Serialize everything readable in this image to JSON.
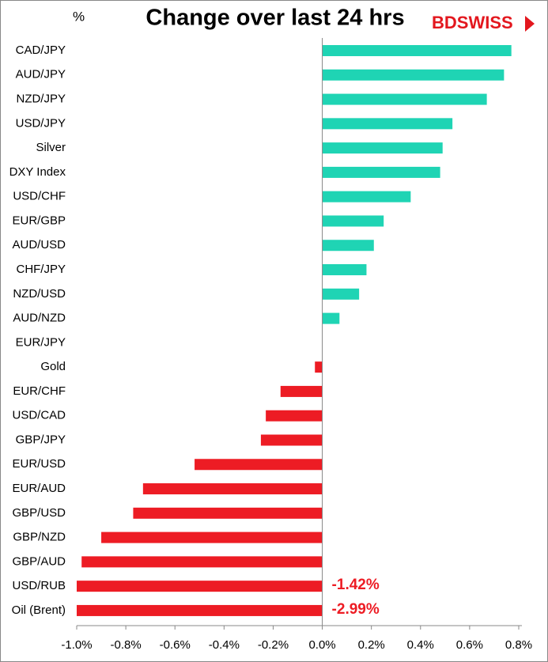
{
  "chart_data": {
    "type": "bar",
    "orientation": "horizontal",
    "title": "Change over last 24 hrs",
    "unit_label": "%",
    "logo": "BDSWISS",
    "categories": [
      "CAD/JPY",
      "AUD/JPY",
      "NZD/JPY",
      "USD/JPY",
      "Silver",
      "DXY Index",
      "USD/CHF",
      "EUR/GBP",
      "AUD/USD",
      "CHF/JPY",
      "NZD/USD",
      "AUD/NZD",
      "EUR/JPY",
      "Gold",
      "EUR/CHF",
      "USD/CAD",
      "GBP/JPY",
      "EUR/USD",
      "EUR/AUD",
      "GBP/USD",
      "GBP/NZD",
      "GBP/AUD",
      "USD/RUB",
      "Oil (Brent)"
    ],
    "values": [
      0.77,
      0.74,
      0.67,
      0.53,
      0.49,
      0.48,
      0.36,
      0.25,
      0.21,
      0.18,
      0.15,
      0.07,
      0,
      -0.03,
      -0.17,
      -0.23,
      -0.25,
      -0.52,
      -0.73,
      -0.77,
      -0.9,
      -0.98,
      -1.42,
      -2.99
    ],
    "value_labels": [
      null,
      null,
      null,
      null,
      null,
      null,
      null,
      null,
      null,
      null,
      null,
      null,
      null,
      null,
      null,
      null,
      null,
      null,
      null,
      null,
      null,
      null,
      "-1.42%",
      "-2.99%"
    ],
    "positive_color": "#1fd4b4",
    "negative_color": "#ed1c24",
    "xlim": [
      -1.0,
      0.8
    ],
    "xticks": [
      {
        "value": -1.0,
        "label": "-1.0%"
      },
      {
        "value": -0.8,
        "label": "-0.8%"
      },
      {
        "value": -0.6,
        "label": "-0.6%"
      },
      {
        "value": -0.4,
        "label": "-0.4%"
      },
      {
        "value": -0.2,
        "label": "-0.2%"
      },
      {
        "value": 0.0,
        "label": "0.0%"
      },
      {
        "value": 0.2,
        "label": "0.2%"
      },
      {
        "value": 0.4,
        "label": "0.4%"
      },
      {
        "value": 0.6,
        "label": "0.6%"
      },
      {
        "value": 0.8,
        "label": "0.8%"
      }
    ],
    "grid": false
  }
}
